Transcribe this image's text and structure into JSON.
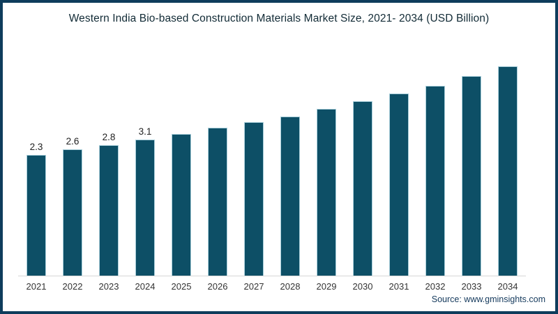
{
  "chart": {
    "title": "Western India Bio-based Construction Materials Market Size, 2021- 2034 (USD Billion)",
    "source": "Source: www.gminsights.com"
  },
  "chart_data": {
    "type": "bar",
    "title": "Western India Bio-based Construction Materials Market Size, 2021- 2034 (USD Billion)",
    "unit": "USD Billion",
    "categories": [
      "2021",
      "2022",
      "2023",
      "2024",
      "2025",
      "2026",
      "2027",
      "2028",
      "2029",
      "2030",
      "2031",
      "2032",
      "2033",
      "2034"
    ],
    "values": [
      2.3,
      2.6,
      2.8,
      3.1,
      3.4,
      3.7,
      4.0,
      4.3,
      4.7,
      5.1,
      5.5,
      5.9,
      6.4,
      6.9
    ],
    "data_labels": [
      "2.3",
      "2.6",
      "2.8",
      "3.1",
      "",
      "",
      "",
      "",
      "",
      "",
      "",
      "",
      "",
      ""
    ],
    "xlabel": "",
    "ylabel": "",
    "gridlines": false,
    "legend_position": "none",
    "y_axis_visible": false,
    "bar_color": "#0d4f66",
    "bar_edge_color": "#a9cfdb",
    "axis_line_color": "#d6d6d6",
    "frame_border_color": "#0e3d5c",
    "source": "Source: www.gminsights.com"
  }
}
